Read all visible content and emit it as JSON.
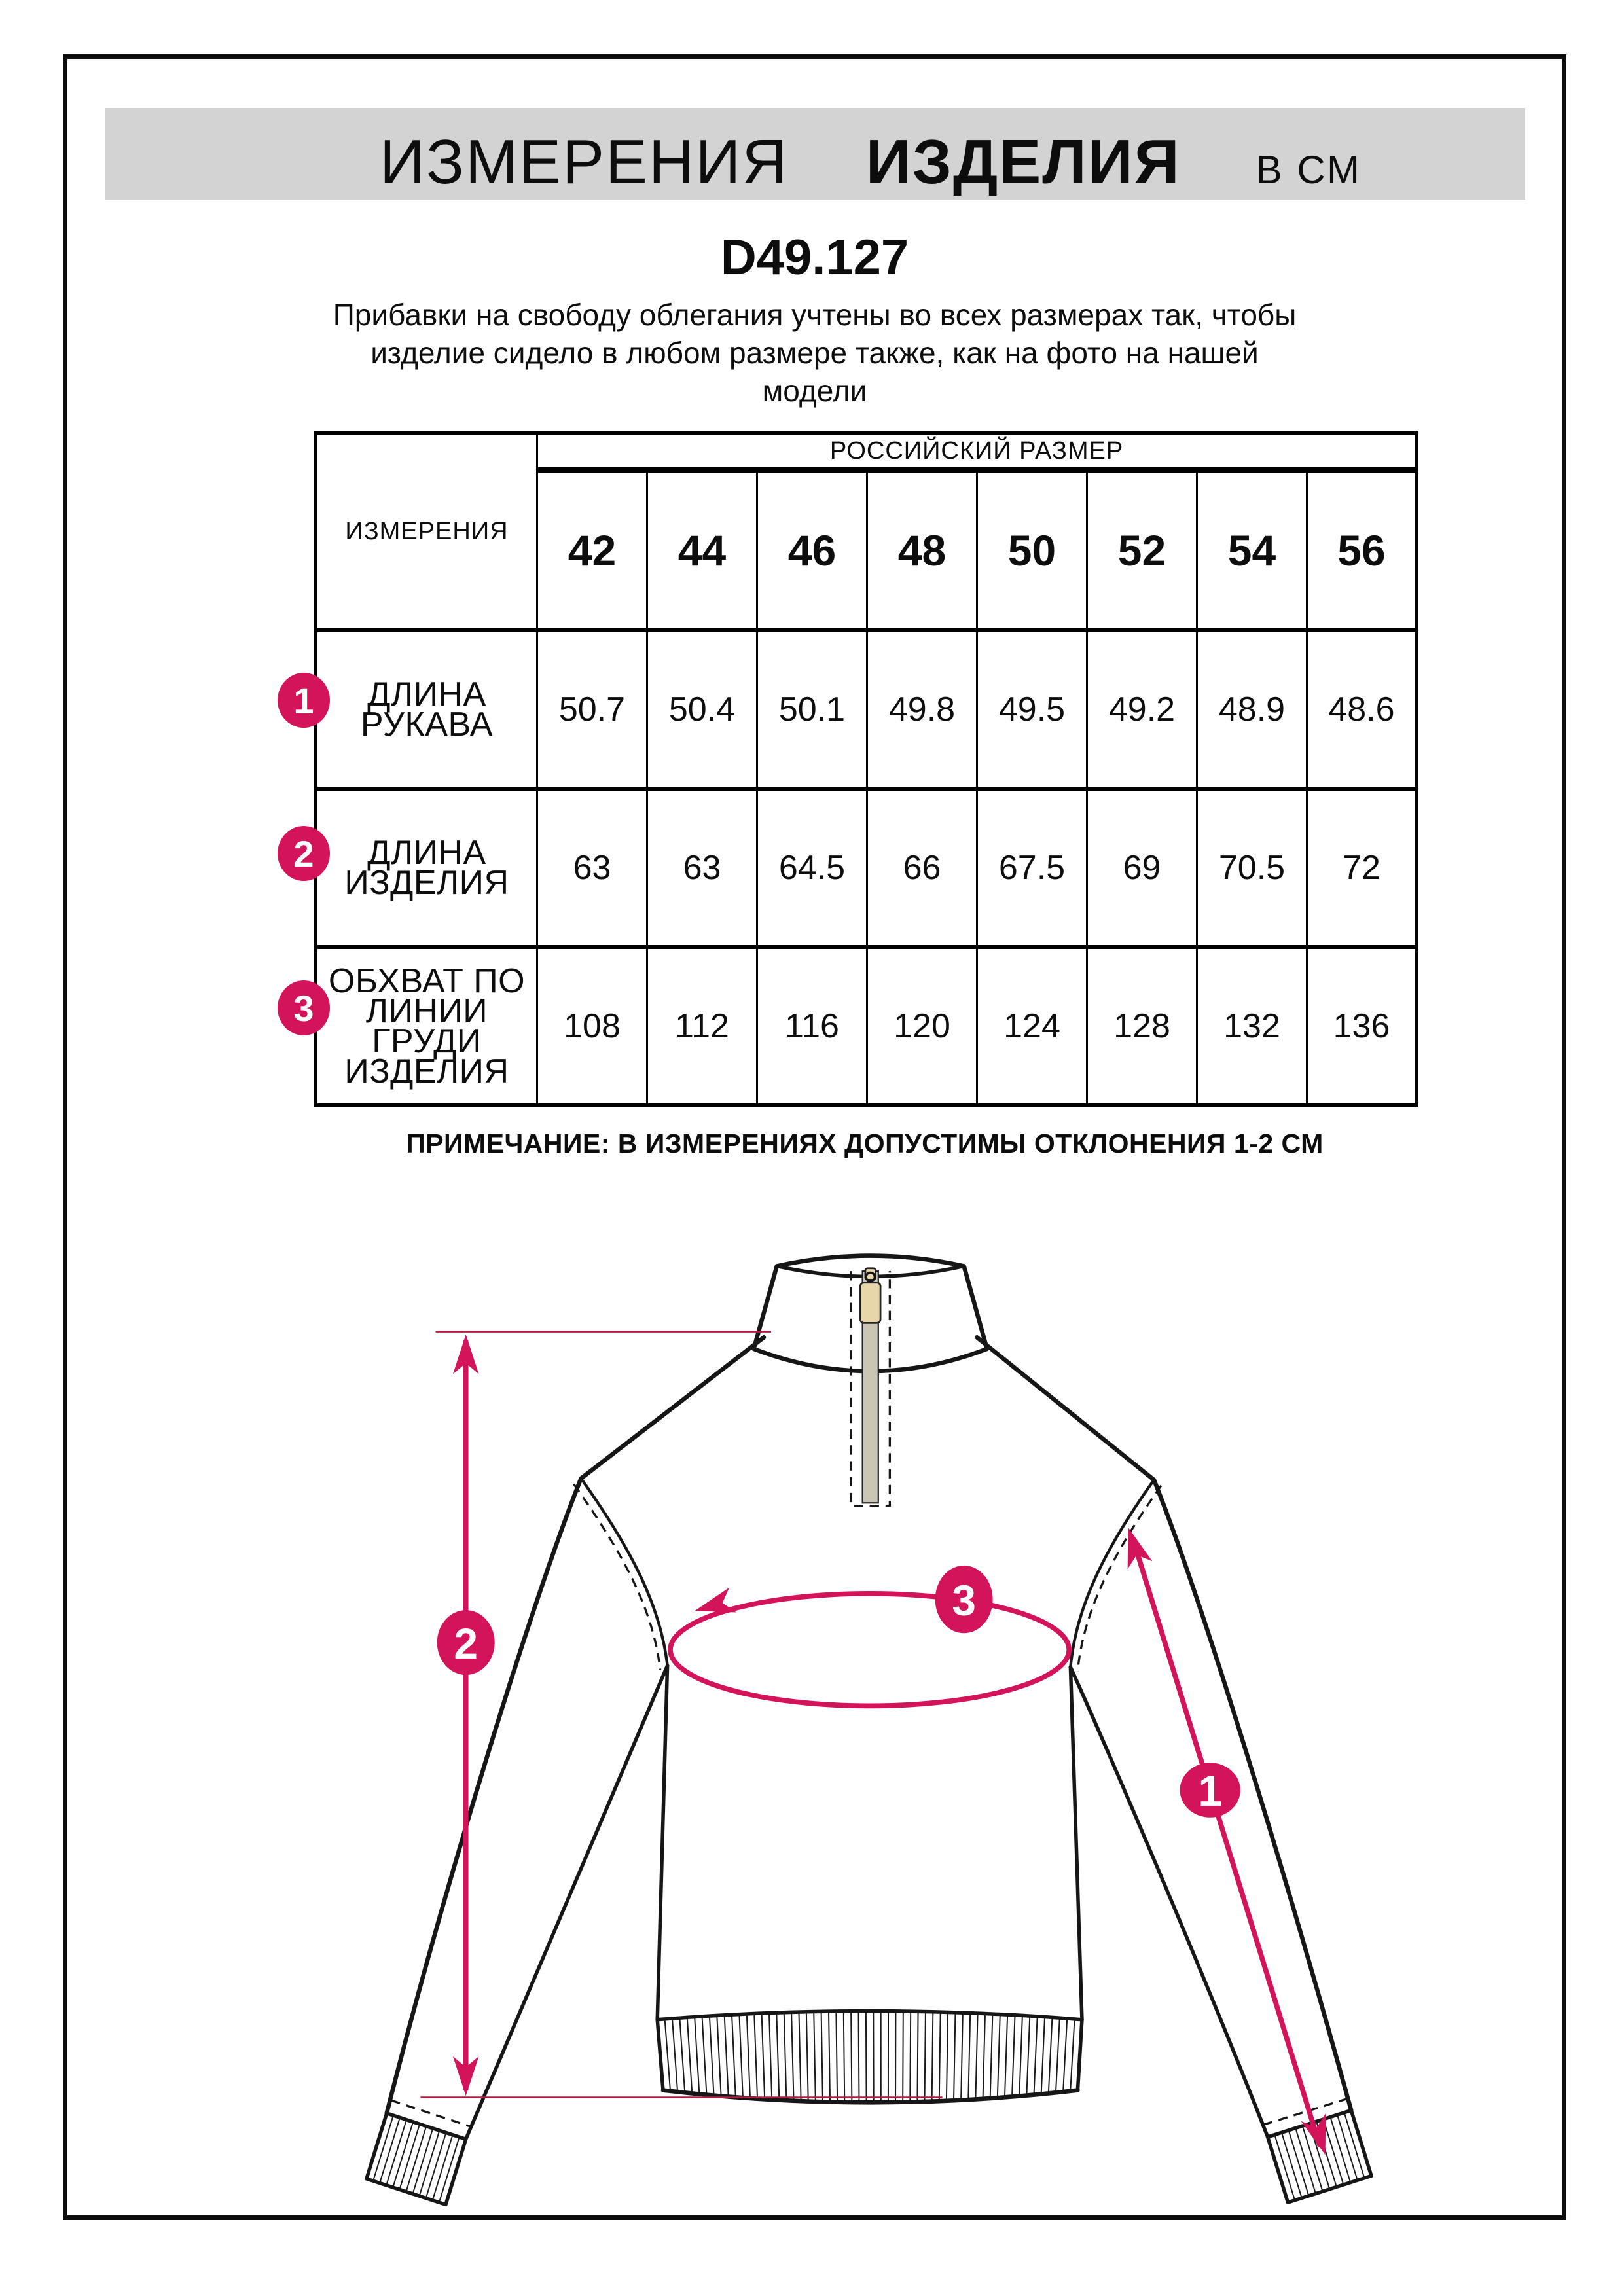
{
  "header": {
    "title_word1": "ИЗМЕРЕНИЯ",
    "title_word2": "ИЗДЕЛИЯ",
    "title_unit": "В СМ"
  },
  "product_code": "D49.127",
  "description_lines": [
    "Прибавки на свободу облегания учтены во всех размерах так, чтобы",
    "изделие сидело в любом размере также, как на фото на нашей",
    "модели"
  ],
  "table": {
    "measurements_header": "ИЗМЕРЕНИЯ",
    "size_group_header": "РОССИЙСКИЙ РАЗМЕР",
    "sizes": [
      "42",
      "44",
      "46",
      "48",
      "50",
      "52",
      "54",
      "56"
    ],
    "rows": [
      {
        "num": "1",
        "label": "ДЛИНА РУКАВА",
        "values": [
          "50.7",
          "50.4",
          "50.1",
          "49.8",
          "49.5",
          "49.2",
          "48.9",
          "48.6"
        ]
      },
      {
        "num": "2",
        "label": "ДЛИНА\nИЗДЕЛИЯ",
        "values": [
          "63",
          "63",
          "64.5",
          "66",
          "67.5",
          "69",
          "70.5",
          "72"
        ]
      },
      {
        "num": "3",
        "label": "ОБХВАТ ПО\nЛИНИИ ГРУДИ\nИЗДЕЛИЯ",
        "values": [
          "108",
          "112",
          "116",
          "120",
          "124",
          "128",
          "132",
          "136"
        ]
      }
    ]
  },
  "note": "ПРИМЕЧАНИЕ: В ИЗМЕРЕНИЯХ ДОПУСТИМЫ ОТКЛОНЕНИЯ 1-2 СМ",
  "diagram": {
    "badge_sleeve_length": "1",
    "badge_product_length": "2",
    "badge_chest_girth": "3"
  },
  "colors": {
    "accent": "#d3135a",
    "guide_line": "#b11e41",
    "header_band_bg": "#d3d3d3",
    "zip_tape": "#cbc5b6",
    "zip_pull": "#e6d6a9"
  }
}
